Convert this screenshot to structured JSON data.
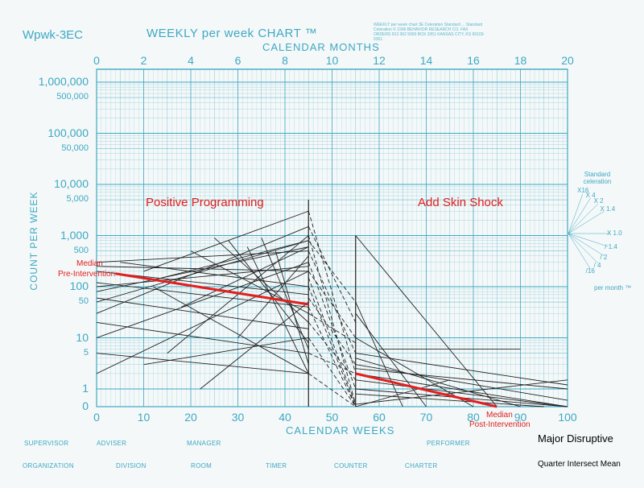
{
  "header": {
    "form_id": "Wpwk-3EC",
    "title": "WEEKLY per week CHART ™",
    "notes": "WEEKLY per week chart 3E Celeration Standard ... Standard Celeration © 1996 BEHAVIOR RESEARCH CO. FAX ORDERS 913 362 5900 BOX 3351 KANSAS CITY, KS 66103-0351"
  },
  "labels": {
    "months_axis": "CALENDAR MONTHS",
    "weeks_axis": "CALENDAR WEEKS",
    "y_axis": "COUNT PER WEEK",
    "phase_1": "Positive Programming",
    "phase_2": "Add Skin Shock",
    "median_pre_line1": "Median",
    "median_pre_line2": "Pre-Intervention",
    "median_post_line1": "Median",
    "median_post_line2": "Post-Intervention",
    "series_title": "Major Disruptive",
    "note": "Quarter Intersect Mean"
  },
  "celeration": {
    "title": "Standard celeration",
    "values": [
      "X16",
      "X 4",
      "X 2",
      "X 1.4",
      "X 1.0",
      "/ 1.4",
      "/ 2",
      "/ 4",
      "/16"
    ],
    "footer": "per month ™"
  },
  "footer_fields": [
    "SUPERVISOR",
    "ADVISER",
    "MANAGER",
    "PERFORMER",
    "ORGANIZATION",
    "DIVISION",
    "ROOM",
    "TIMER",
    "COUNTER",
    "CHARTER"
  ],
  "colors": {
    "grid": "#3ea8c4",
    "median": "#e02020",
    "series": "#222222"
  },
  "chart_data": {
    "type": "line",
    "y_scale": "log",
    "ylim": [
      0,
      1000000
    ],
    "xlim": [
      0,
      100
    ],
    "x_ticks": [
      0,
      10,
      20,
      30,
      40,
      50,
      60,
      70,
      80,
      90,
      100
    ],
    "month_ticks": [
      0,
      2,
      4,
      6,
      8,
      10,
      12,
      14,
      16,
      18,
      20
    ],
    "y_ticks": [
      "1,000,000",
      "500,000",
      "100,000",
      "50,000",
      "10,000",
      "5,000",
      "1,000",
      "500",
      "100",
      "50",
      "10",
      "5",
      "1",
      "0"
    ],
    "phase_change_week": 45,
    "phase_2_start_week": 55,
    "median_pre": {
      "x": [
        4,
        45
      ],
      "y": [
        180,
        45
      ]
    },
    "median_post": {
      "x": [
        55,
        85
      ],
      "y": [
        2,
        0.4
      ]
    },
    "pre_lines": [
      {
        "x": [
          0,
          45
        ],
        "y": [
          300,
          500
        ]
      },
      {
        "x": [
          0,
          45
        ],
        "y": [
          120,
          40
        ]
      },
      {
        "x": [
          0,
          45
        ],
        "y": [
          80,
          600
        ]
      },
      {
        "x": [
          0,
          45
        ],
        "y": [
          50,
          800
        ]
      },
      {
        "x": [
          0,
          45
        ],
        "y": [
          30,
          1500
        ]
      },
      {
        "x": [
          0,
          45
        ],
        "y": [
          10,
          300
        ]
      },
      {
        "x": [
          0,
          45
        ],
        "y": [
          2,
          200
        ]
      },
      {
        "x": [
          0,
          45
        ],
        "y": [
          20,
          5
        ]
      },
      {
        "x": [
          0,
          45
        ],
        "y": [
          60,
          15
        ]
      },
      {
        "x": [
          0,
          45
        ],
        "y": [
          250,
          200
        ]
      },
      {
        "x": [
          5,
          45
        ],
        "y": [
          300,
          100
        ]
      },
      {
        "x": [
          10,
          45
        ],
        "y": [
          200,
          3000
        ]
      },
      {
        "x": [
          12,
          45
        ],
        "y": [
          100,
          2
        ]
      },
      {
        "x": [
          15,
          45
        ],
        "y": [
          5,
          1000
        ]
      },
      {
        "x": [
          18,
          45
        ],
        "y": [
          40,
          600
        ]
      },
      {
        "x": [
          20,
          45
        ],
        "y": [
          500,
          30
        ]
      },
      {
        "x": [
          25,
          45
        ],
        "y": [
          900,
          20
        ]
      },
      {
        "x": [
          28,
          45
        ],
        "y": [
          800,
          8
        ]
      },
      {
        "x": [
          30,
          45
        ],
        "y": [
          10,
          400
        ]
      },
      {
        "x": [
          32,
          45
        ],
        "y": [
          600,
          2
        ]
      },
      {
        "x": [
          35,
          45
        ],
        "y": [
          900,
          6
        ]
      },
      {
        "x": [
          38,
          45
        ],
        "y": [
          500,
          3
        ]
      },
      {
        "x": [
          10,
          45
        ],
        "y": [
          3,
          10
        ]
      },
      {
        "x": [
          0,
          45
        ],
        "y": [
          5,
          2
        ]
      },
      {
        "x": [
          0,
          45
        ],
        "y": [
          200,
          70
        ]
      },
      {
        "x": [
          22,
          45
        ],
        "y": [
          1,
          50
        ]
      },
      {
        "x": [
          14,
          45
        ],
        "y": [
          150,
          800
        ]
      },
      {
        "x": [
          0,
          45
        ],
        "y": [
          100,
          250
        ]
      }
    ],
    "transition_lines": [
      {
        "x": [
          45,
          55
        ],
        "y": [
          3000,
          2
        ]
      },
      {
        "x": [
          45,
          55
        ],
        "y": [
          1000,
          0.5
        ]
      },
      {
        "x": [
          45,
          55
        ],
        "y": [
          500,
          5
        ]
      },
      {
        "x": [
          45,
          55
        ],
        "y": [
          300,
          1
        ]
      },
      {
        "x": [
          45,
          55
        ],
        "y": [
          200,
          10
        ]
      },
      {
        "x": [
          45,
          55
        ],
        "y": [
          100,
          0.4
        ]
      },
      {
        "x": [
          45,
          55
        ],
        "y": [
          60,
          3
        ]
      },
      {
        "x": [
          45,
          55
        ],
        "y": [
          40,
          0.3
        ]
      },
      {
        "x": [
          45,
          55
        ],
        "y": [
          20,
          1.5
        ]
      },
      {
        "x": [
          45,
          55
        ],
        "y": [
          10,
          0.2
        ]
      },
      {
        "x": [
          45,
          55
        ],
        "y": [
          5,
          2
        ]
      },
      {
        "x": [
          45,
          55
        ],
        "y": [
          2,
          0.3
        ]
      },
      {
        "x": [
          45,
          55
        ],
        "y": [
          1500,
          20
        ]
      },
      {
        "x": [
          45,
          55
        ],
        "y": [
          800,
          50
        ]
      },
      {
        "x": [
          45,
          55
        ],
        "y": [
          150,
          0.5
        ]
      },
      {
        "x": [
          45,
          55
        ],
        "y": [
          30,
          8
        ]
      }
    ],
    "post_lines": [
      {
        "x": [
          55,
          100
        ],
        "y": [
          5,
          1.2
        ]
      },
      {
        "x": [
          55,
          100
        ],
        "y": [
          3,
          0.6
        ]
      },
      {
        "x": [
          55,
          100
        ],
        "y": [
          2,
          0.2
        ]
      },
      {
        "x": [
          55,
          100
        ],
        "y": [
          1,
          0.3
        ]
      },
      {
        "x": [
          55,
          90
        ],
        "y": [
          4,
          0.2
        ]
      },
      {
        "x": [
          55,
          85
        ],
        "y": [
          1000,
          0.2
        ]
      },
      {
        "x": [
          55,
          80
        ],
        "y": [
          10,
          0.2
        ]
      },
      {
        "x": [
          55,
          65
        ],
        "y": [
          50,
          0.2
        ]
      },
      {
        "x": [
          55,
          70
        ],
        "y": [
          30,
          0.2
        ]
      },
      {
        "x": [
          55,
          100
        ],
        "y": [
          0.5,
          1.5
        ]
      },
      {
        "x": [
          55,
          100
        ],
        "y": [
          1.5,
          0.4
        ]
      },
      {
        "x": [
          55,
          95
        ],
        "y": [
          0.8,
          0.2
        ]
      },
      {
        "x": [
          60,
          90
        ],
        "y": [
          6,
          6
        ]
      },
      {
        "x": [
          55,
          75
        ],
        "y": [
          0.4,
          1.5
        ]
      },
      {
        "x": [
          55,
          100
        ],
        "y": [
          2.5,
          1
        ]
      }
    ]
  }
}
